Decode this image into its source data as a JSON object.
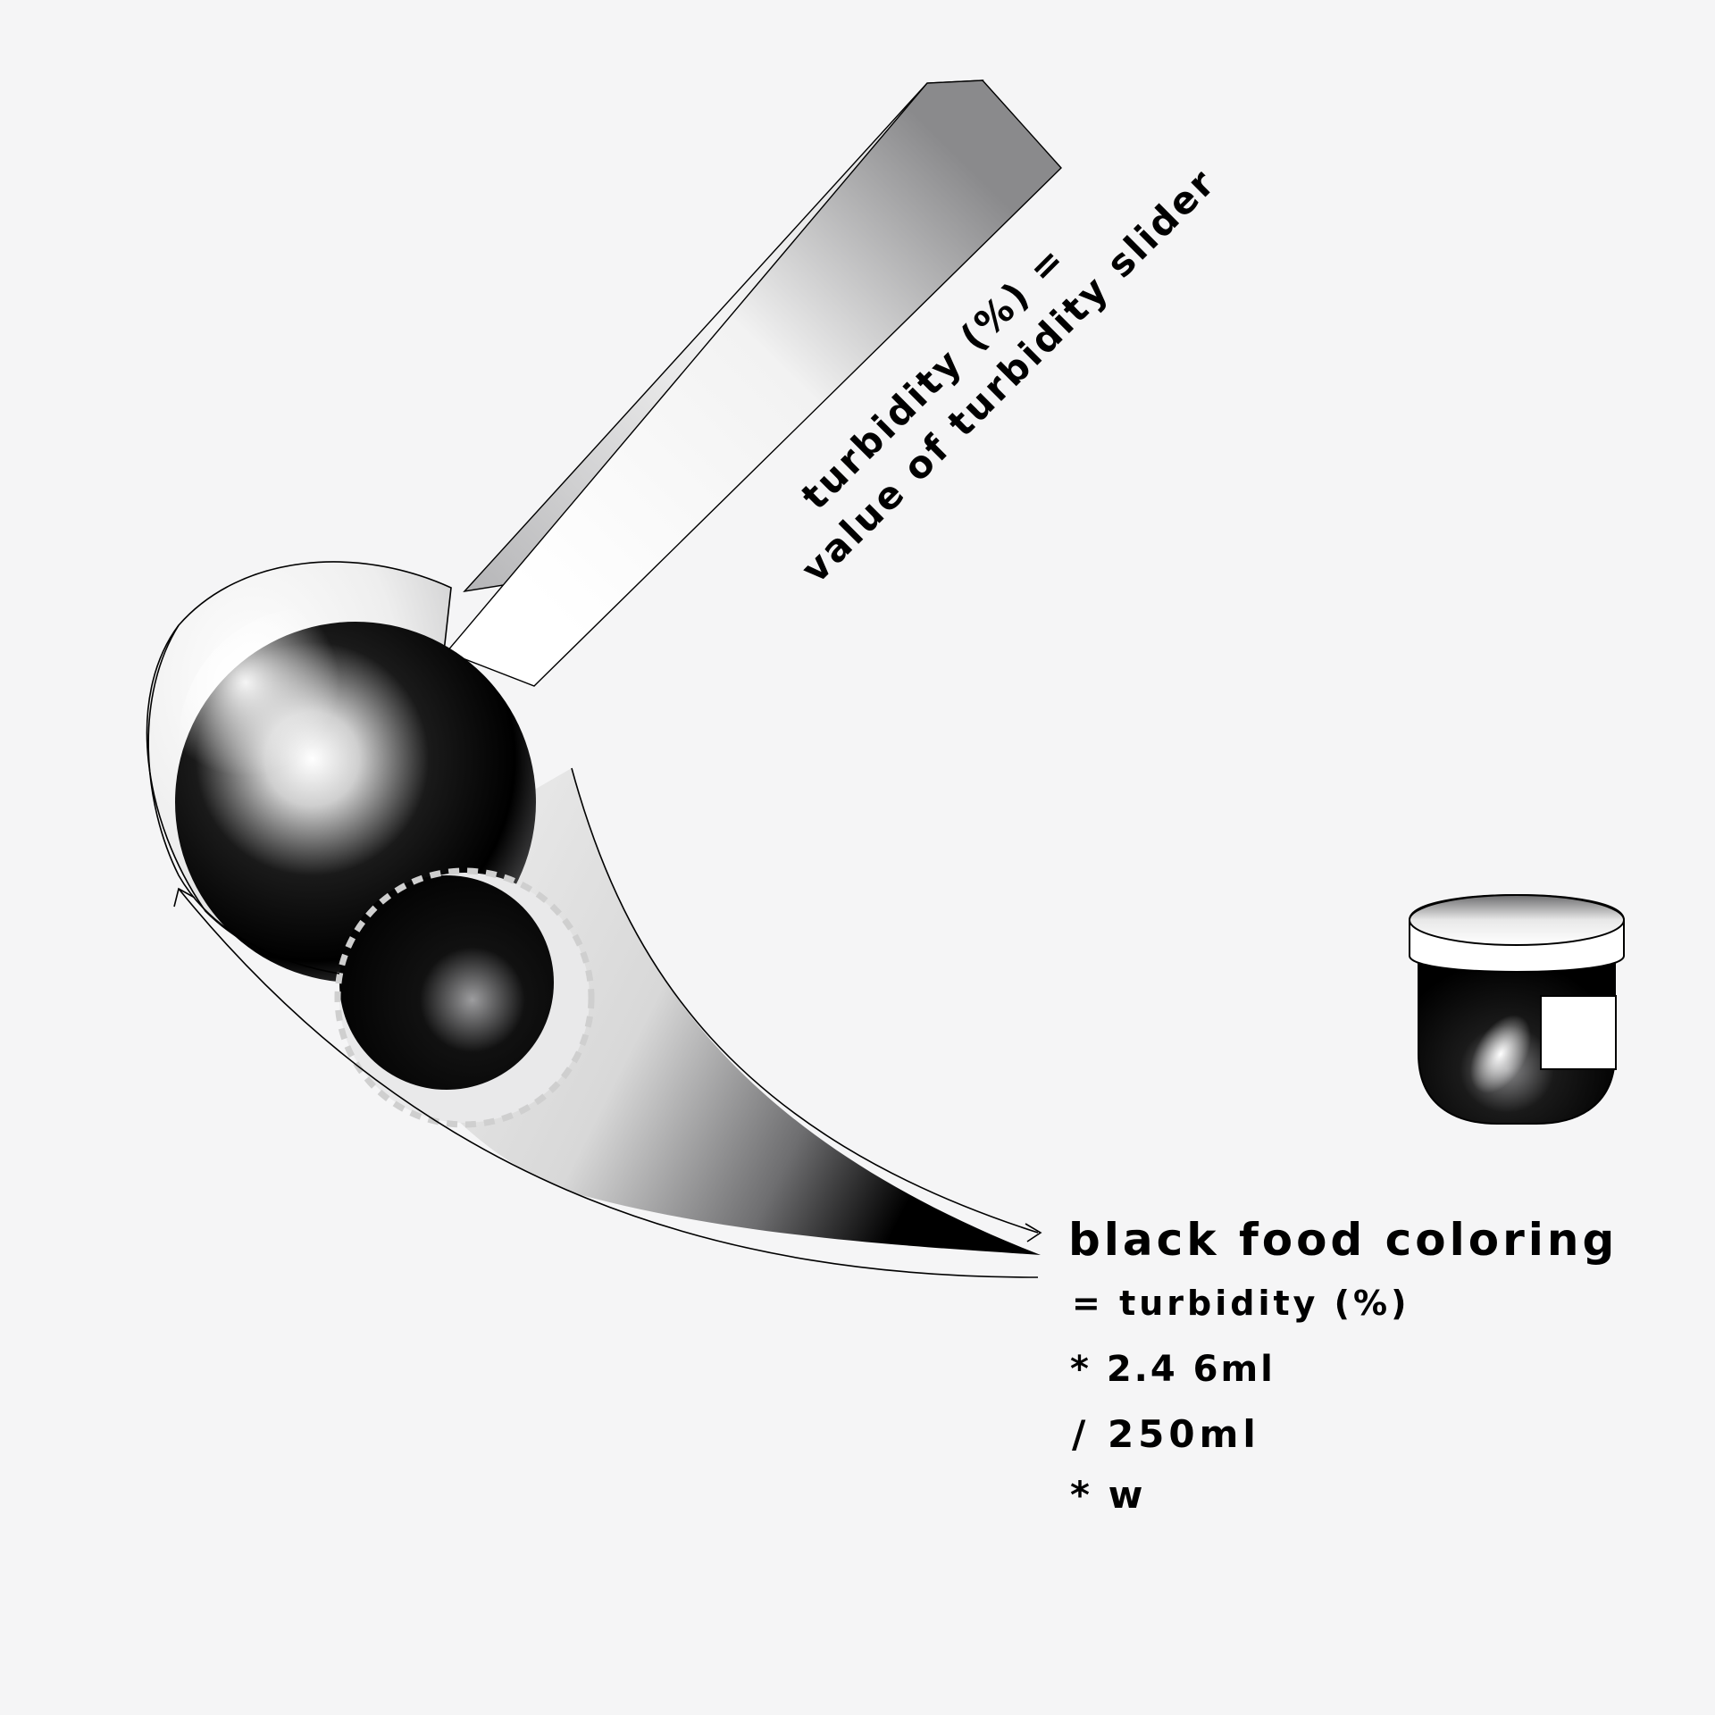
{
  "colors": {
    "background": "#f5f5f6",
    "ink": "#000000",
    "paper": "#ffffff",
    "mid_gray": "#9a9a9c",
    "dashed_ring": "#cfcfcf"
  },
  "icons": {
    "spoon": "measuring-spoon-illustration",
    "jar": "food-coloring-jar-illustration",
    "arrows": "flow-arrow"
  },
  "spoon_label": {
    "line1": "turbidity (%) =",
    "line2": "value of turbidity slider"
  },
  "formula": {
    "line1": "black food coloring",
    "line2": "= turbidity (%)",
    "line3": "*  2.4 6ml",
    "line4": "/  250ml",
    "line5": "* w"
  }
}
